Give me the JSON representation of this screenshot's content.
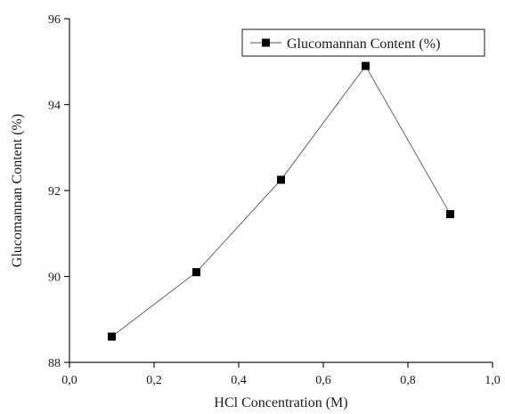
{
  "chart_data": {
    "type": "line",
    "title": "",
    "xlabel": "HCl Concentration (M)",
    "ylabel": "Glucomannan Content (%)",
    "xlim": [
      0.0,
      1.0
    ],
    "ylim": [
      88,
      96
    ],
    "x_ticks": [
      0.0,
      0.2,
      0.4,
      0.6,
      0.8,
      1.0
    ],
    "x_tick_labels": [
      "0,0",
      "0,2",
      "0,4",
      "0,6",
      "0,8",
      "1,0"
    ],
    "y_ticks": [
      88,
      90,
      92,
      94,
      96
    ],
    "y_tick_labels": [
      "88",
      "90",
      "92",
      "94",
      "96"
    ],
    "grid": false,
    "legend_position": "top-right",
    "series": [
      {
        "name": "Glucomannan Content (%)",
        "marker": "square",
        "color": "#000000",
        "x": [
          0.1,
          0.3,
          0.5,
          0.7,
          0.9
        ],
        "y": [
          88.6,
          90.1,
          92.25,
          94.9,
          91.45
        ]
      }
    ]
  }
}
